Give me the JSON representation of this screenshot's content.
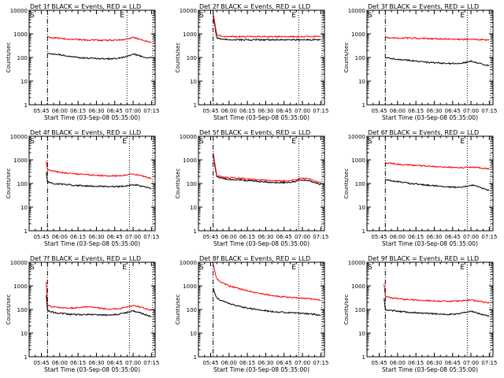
{
  "figure": {
    "ylabel": "Counts/sec",
    "xlabel": "Start Time (03-Sep-08 05:35:00)",
    "start_marker": "S",
    "end_marker": "E",
    "y_ticks": [
      "1",
      "10",
      "100",
      "1000",
      "10000"
    ],
    "x_ticks": [
      "05:45",
      "06:00",
      "06:15",
      "06:30",
      "06:45",
      "07:00",
      "07:15"
    ],
    "colors": {
      "events": "#000000",
      "lld": "#ff0000",
      "axes": "#000000"
    }
  },
  "chart_data": [
    {
      "type": "line",
      "title": "Det 1f BLACK = Events, RED = LLD",
      "xlabel": "Start Time (03-Sep-08 05:35:00)",
      "ylabel": "Counts/sec",
      "scale_y": "log",
      "ylim": [
        1,
        10000
      ],
      "xlim": [
        "05:35",
        "07:18"
      ],
      "markers": {
        "start_dashdot": "05:50",
        "end_dotted": "06:55",
        "end_dotted_2": "07:16"
      },
      "series": [
        {
          "name": "Events",
          "color": "#000000",
          "x": [
            "05:50",
            "05:55",
            "06:00",
            "06:05",
            "06:10",
            "06:15",
            "06:20",
            "06:25",
            "06:30",
            "06:35",
            "06:40",
            "06:45",
            "06:50",
            "06:55",
            "07:00",
            "07:05",
            "07:10",
            "07:15"
          ],
          "values": [
            150,
            140,
            130,
            120,
            110,
            100,
            95,
            92,
            90,
            88,
            88,
            90,
            95,
            110,
            140,
            120,
            100,
            95
          ]
        },
        {
          "name": "LLD",
          "color": "#ff0000",
          "x": [
            "05:50",
            "05:55",
            "06:00",
            "06:05",
            "06:10",
            "06:15",
            "06:20",
            "06:25",
            "06:30",
            "06:35",
            "06:40",
            "06:45",
            "06:50",
            "06:55",
            "07:00",
            "07:05",
            "07:10",
            "07:15"
          ],
          "values": [
            700,
            680,
            650,
            620,
            600,
            580,
            560,
            550,
            540,
            530,
            530,
            540,
            560,
            600,
            700,
            600,
            500,
            450
          ]
        }
      ]
    },
    {
      "type": "line",
      "title": "Det 2f BLACK = Events, RED = LLD",
      "xlabel": "Start Time (03-Sep-08 05:35:00)",
      "ylabel": "Counts/sec",
      "scale_y": "log",
      "ylim": [
        1,
        10000
      ],
      "xlim": [
        "05:35",
        "07:18"
      ],
      "markers": {
        "start_dashdot": "05:47",
        "end_dotted": "06:57",
        "end_dotted_2": "07:16"
      },
      "series": [
        {
          "name": "Events",
          "color": "#000000",
          "x": [
            "05:47",
            "05:50",
            "05:55",
            "06:00",
            "06:05",
            "06:10",
            "06:15",
            "06:20",
            "06:25",
            "06:30",
            "06:35",
            "06:40",
            "06:45",
            "06:50",
            "06:55",
            "07:00",
            "07:05",
            "07:10",
            "07:15"
          ],
          "values": [
            6000,
            650,
            600,
            580,
            570,
            560,
            560,
            560,
            560,
            560,
            560,
            560,
            560,
            560,
            560,
            560,
            560,
            560,
            560
          ]
        },
        {
          "name": "LLD",
          "color": "#ff0000",
          "x": [
            "05:47",
            "05:50",
            "05:55",
            "06:00",
            "06:05",
            "06:10",
            "06:15",
            "06:20",
            "06:25",
            "06:30",
            "06:35",
            "06:40",
            "06:45",
            "06:50",
            "06:55",
            "07:00",
            "07:05",
            "07:10",
            "07:15"
          ],
          "values": [
            8000,
            900,
            800,
            780,
            770,
            760,
            760,
            760,
            760,
            760,
            760,
            760,
            760,
            760,
            760,
            760,
            760,
            760,
            760
          ]
        }
      ]
    },
    {
      "type": "line",
      "title": "Det 3f BLACK = Events, RED = LLD",
      "xlabel": "Start Time (03-Sep-08 05:35:00)",
      "ylabel": "Counts/sec",
      "scale_y": "log",
      "ylim": [
        1,
        10000
      ],
      "xlim": [
        "05:35",
        "07:18"
      ],
      "markers": {
        "start_dashdot": "05:50",
        "end_dotted": "06:57",
        "end_dotted_2": "07:16"
      },
      "series": [
        {
          "name": "Events",
          "color": "#000000",
          "x": [
            "05:50",
            "05:55",
            "06:00",
            "06:05",
            "06:10",
            "06:15",
            "06:20",
            "06:25",
            "06:30",
            "06:35",
            "06:40",
            "06:45",
            "06:50",
            "06:55",
            "07:00",
            "07:05",
            "07:10",
            "07:15"
          ],
          "values": [
            100,
            90,
            85,
            80,
            75,
            70,
            65,
            62,
            60,
            58,
            56,
            55,
            55,
            60,
            70,
            60,
            50,
            45
          ]
        },
        {
          "name": "LLD",
          "color": "#ff0000",
          "x": [
            "05:50",
            "05:55",
            "06:00",
            "06:05",
            "06:10",
            "06:15",
            "06:20",
            "06:25",
            "06:30",
            "06:35",
            "06:40",
            "06:45",
            "06:50",
            "06:55",
            "07:00",
            "07:05",
            "07:10",
            "07:15"
          ],
          "values": [
            700,
            690,
            680,
            670,
            660,
            650,
            640,
            630,
            620,
            610,
            600,
            590,
            580,
            580,
            600,
            580,
            560,
            540
          ]
        }
      ]
    },
    {
      "type": "line",
      "title": "Det 4f BLACK = Events, RED = LLD",
      "xlabel": "Start Time (03-Sep-08 05:35:00)",
      "ylabel": "Counts/sec",
      "scale_y": "log",
      "ylim": [
        1,
        10000
      ],
      "xlim": [
        "05:35",
        "07:18"
      ],
      "markers": {
        "start_dashdot": "05:50",
        "end_dotted": "06:57",
        "end_dotted_2": "07:16"
      },
      "series": [
        {
          "name": "Events",
          "color": "#000000",
          "x": [
            "05:49",
            "05:50",
            "05:55",
            "06:00",
            "06:05",
            "06:10",
            "06:15",
            "06:20",
            "06:25",
            "06:30",
            "06:35",
            "06:40",
            "06:45",
            "06:50",
            "06:55",
            "07:00",
            "07:05",
            "07:10",
            "07:15"
          ],
          "values": [
            300,
            120,
            100,
            95,
            90,
            85,
            82,
            80,
            78,
            76,
            75,
            74,
            74,
            75,
            80,
            90,
            80,
            70,
            60
          ]
        },
        {
          "name": "LLD",
          "color": "#ff0000",
          "x": [
            "05:49",
            "05:50",
            "05:55",
            "06:00",
            "06:05",
            "06:10",
            "06:15",
            "06:20",
            "06:25",
            "06:30",
            "06:35",
            "06:40",
            "06:45",
            "06:50",
            "06:55",
            "07:00",
            "07:05",
            "07:10",
            "07:15"
          ],
          "values": [
            900,
            400,
            330,
            300,
            280,
            260,
            250,
            240,
            230,
            220,
            215,
            210,
            210,
            215,
            230,
            250,
            220,
            190,
            160
          ]
        }
      ]
    },
    {
      "type": "line",
      "title": "Det 5f BLACK = Events, RED = LLD",
      "xlabel": "Start Time (03-Sep-08 05:35:00)",
      "ylabel": "Counts/sec",
      "scale_y": "log",
      "ylim": [
        1,
        10000
      ],
      "xlim": [
        "05:35",
        "07:18"
      ],
      "markers": {
        "start_dashdot": "05:47",
        "end_dotted": "06:57",
        "end_dotted_2": "07:16"
      },
      "series": [
        {
          "name": "Events",
          "color": "#000000",
          "x": [
            "05:47",
            "05:50",
            "05:55",
            "06:00",
            "06:05",
            "06:10",
            "06:15",
            "06:20",
            "06:25",
            "06:30",
            "06:35",
            "06:40",
            "06:45",
            "06:50",
            "06:55",
            "07:00",
            "07:05",
            "07:10",
            "07:15"
          ],
          "values": [
            1500,
            200,
            160,
            150,
            145,
            140,
            130,
            125,
            120,
            115,
            110,
            108,
            108,
            112,
            125,
            140,
            130,
            110,
            90
          ]
        },
        {
          "name": "LLD",
          "color": "#ff0000",
          "x": [
            "05:47",
            "05:50",
            "05:55",
            "06:00",
            "06:05",
            "06:10",
            "06:15",
            "06:20",
            "06:25",
            "06:30",
            "06:35",
            "06:40",
            "06:45",
            "06:50",
            "06:55",
            "07:00",
            "07:05",
            "07:10",
            "07:15"
          ],
          "values": [
            2000,
            230,
            185,
            175,
            170,
            165,
            155,
            148,
            142,
            136,
            130,
            128,
            128,
            132,
            148,
            165,
            155,
            130,
            105
          ]
        }
      ]
    },
    {
      "type": "line",
      "title": "Det 6f BLACK = Events, RED = LLD",
      "xlabel": "Start Time (03-Sep-08 05:35:00)",
      "ylabel": "Counts/sec",
      "scale_y": "log",
      "ylim": [
        1,
        10000
      ],
      "xlim": [
        "05:35",
        "07:18"
      ],
      "markers": {
        "start_dashdot": "05:50",
        "end_dotted": "06:57",
        "end_dotted_2": "07:16"
      },
      "series": [
        {
          "name": "Events",
          "color": "#000000",
          "x": [
            "05:50",
            "05:55",
            "06:00",
            "06:05",
            "06:10",
            "06:15",
            "06:20",
            "06:25",
            "06:30",
            "06:35",
            "06:40",
            "06:45",
            "06:50",
            "06:55",
            "07:00",
            "07:05",
            "07:10",
            "07:15"
          ],
          "values": [
            150,
            130,
            120,
            110,
            100,
            95,
            90,
            85,
            80,
            75,
            72,
            70,
            70,
            72,
            85,
            75,
            60,
            50
          ]
        },
        {
          "name": "LLD",
          "color": "#ff0000",
          "x": [
            "05:50",
            "05:55",
            "06:00",
            "06:05",
            "06:10",
            "06:15",
            "06:20",
            "06:25",
            "06:30",
            "06:35",
            "06:40",
            "06:45",
            "06:50",
            "06:55",
            "07:00",
            "07:05",
            "07:10",
            "07:15"
          ],
          "values": [
            750,
            700,
            660,
            630,
            600,
            580,
            560,
            540,
            520,
            500,
            490,
            480,
            470,
            470,
            490,
            470,
            440,
            420
          ]
        }
      ]
    },
    {
      "type": "line",
      "title": "Det 7f BLACK = Events, RED = LLD",
      "xlabel": "Start Time (03-Sep-08 05:35:00)",
      "ylabel": "Counts/sec",
      "scale_y": "log",
      "ylim": [
        1,
        10000
      ],
      "xlim": [
        "05:35",
        "07:18"
      ],
      "markers": {
        "start_dashdot": "05:50",
        "end_dotted": "06:57",
        "end_dotted_2": "07:16"
      },
      "series": [
        {
          "name": "Events",
          "color": "#000000",
          "x": [
            "05:49",
            "05:50",
            "05:55",
            "06:00",
            "06:05",
            "06:10",
            "06:15",
            "06:20",
            "06:25",
            "06:30",
            "06:35",
            "06:40",
            "06:45",
            "06:50",
            "06:55",
            "07:00",
            "07:05",
            "07:10",
            "07:15"
          ],
          "values": [
            400,
            90,
            75,
            70,
            65,
            62,
            60,
            60,
            62,
            60,
            58,
            58,
            60,
            65,
            75,
            85,
            75,
            60,
            50
          ]
        },
        {
          "name": "LLD",
          "color": "#ff0000",
          "x": [
            "05:49",
            "05:50",
            "05:55",
            "06:00",
            "06:05",
            "06:10",
            "06:15",
            "06:20",
            "06:25",
            "06:30",
            "06:35",
            "06:40",
            "06:45",
            "06:50",
            "06:55",
            "07:00",
            "07:05",
            "07:10",
            "07:15"
          ],
          "values": [
            1500,
            150,
            125,
            120,
            115,
            115,
            120,
            125,
            130,
            120,
            110,
            105,
            105,
            110,
            125,
            145,
            130,
            110,
            90
          ]
        }
      ]
    },
    {
      "type": "line",
      "title": "Det 8f BLACK = Events, RED = LLD",
      "xlabel": "Start Time (03-Sep-08 05:35:00)",
      "ylabel": "Counts/sec",
      "scale_y": "log",
      "ylim": [
        1,
        10000
      ],
      "xlim": [
        "05:35",
        "07:18"
      ],
      "markers": {
        "start_dashdot": "05:47",
        "end_dotted": "06:57",
        "end_dotted_2": "07:16"
      },
      "series": [
        {
          "name": "Events",
          "color": "#000000",
          "x": [
            "05:47",
            "05:50",
            "05:55",
            "06:00",
            "06:05",
            "06:10",
            "06:15",
            "06:20",
            "06:25",
            "06:30",
            "06:35",
            "06:40",
            "06:45",
            "06:50",
            "06:55",
            "07:00",
            "07:05",
            "07:10",
            "07:15"
          ],
          "values": [
            800,
            300,
            220,
            180,
            150,
            130,
            115,
            105,
            95,
            88,
            82,
            78,
            75,
            72,
            70,
            68,
            65,
            62,
            55
          ]
        },
        {
          "name": "LLD",
          "color": "#ff0000",
          "x": [
            "05:47",
            "05:50",
            "05:55",
            "06:00",
            "06:05",
            "06:10",
            "06:15",
            "06:20",
            "06:25",
            "06:30",
            "06:35",
            "06:40",
            "06:45",
            "06:50",
            "06:55",
            "07:00",
            "07:05",
            "07:10",
            "07:15"
          ],
          "values": [
            8000,
            2000,
            1300,
            1000,
            850,
            720,
            620,
            540,
            480,
            430,
            390,
            360,
            340,
            320,
            310,
            300,
            290,
            270,
            240
          ]
        }
      ]
    },
    {
      "type": "line",
      "title": "Det 9f BLACK = Events, RED = LLD",
      "xlabel": "Start Time (03-Sep-08 05:35:00)",
      "ylabel": "Counts/sec",
      "scale_y": "log",
      "ylim": [
        1,
        10000
      ],
      "xlim": [
        "05:35",
        "07:18"
      ],
      "markers": {
        "start_dashdot": "05:50",
        "end_dotted": "06:57",
        "end_dotted_2": "07:16"
      },
      "series": [
        {
          "name": "Events",
          "color": "#000000",
          "x": [
            "05:49",
            "05:50",
            "05:55",
            "06:00",
            "06:05",
            "06:10",
            "06:15",
            "06:20",
            "06:25",
            "06:30",
            "06:35",
            "06:40",
            "06:45",
            "06:50",
            "06:55",
            "07:00",
            "07:05",
            "07:10",
            "07:15"
          ],
          "values": [
            300,
            100,
            90,
            85,
            80,
            75,
            72,
            70,
            68,
            66,
            64,
            62,
            62,
            65,
            75,
            85,
            72,
            60,
            52
          ]
        },
        {
          "name": "LLD",
          "color": "#ff0000",
          "x": [
            "05:49",
            "05:50",
            "05:55",
            "06:00",
            "06:05",
            "06:10",
            "06:15",
            "06:20",
            "06:25",
            "06:30",
            "06:35",
            "06:40",
            "06:45",
            "06:50",
            "06:55",
            "07:00",
            "07:05",
            "07:10",
            "07:15"
          ],
          "values": [
            1200,
            350,
            310,
            290,
            270,
            260,
            250,
            240,
            235,
            230,
            225,
            220,
            220,
            225,
            240,
            250,
            230,
            210,
            190
          ]
        }
      ]
    }
  ]
}
